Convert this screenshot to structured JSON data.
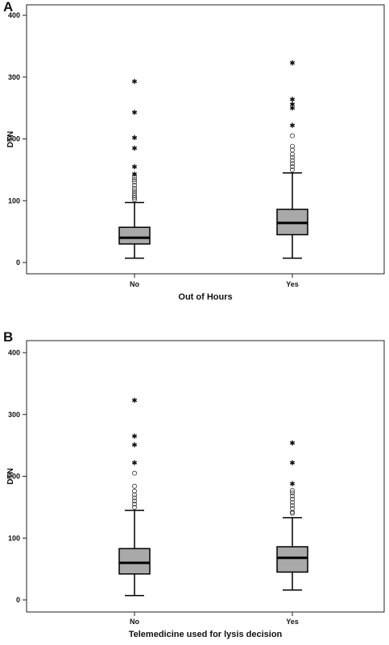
{
  "chart_data": [
    {
      "type": "boxplot",
      "panel_label": "A",
      "xlabel": "Out of Hours",
      "ylabel": "DTN",
      "ylim": [
        0,
        400
      ],
      "yticks": [
        0,
        100,
        200,
        300,
        400
      ],
      "categories": [
        "No",
        "Yes"
      ],
      "boxes": [
        {
          "category": "No",
          "whisker_low": 7,
          "q1": 30,
          "median": 40,
          "q3": 57,
          "whisker_high": 97,
          "outliers_circle": [
            102,
            105,
            108,
            112,
            116,
            120,
            125,
            130,
            134,
            138
          ],
          "outliers_star": [
            143,
            155,
            185,
            202,
            243,
            293
          ]
        },
        {
          "category": "Yes",
          "whisker_low": 7,
          "q1": 45,
          "median": 64,
          "q3": 86,
          "whisker_high": 145,
          "outliers_circle": [
            150,
            155,
            160,
            165,
            170,
            175,
            182,
            188,
            205
          ],
          "outliers_star": [
            222,
            250,
            256,
            264,
            323
          ]
        }
      ]
    },
    {
      "type": "boxplot",
      "panel_label": "B",
      "xlabel": "Telemedicine used for lysis decision",
      "ylabel": "DTN",
      "ylim": [
        0,
        400
      ],
      "yticks": [
        0,
        100,
        200,
        300,
        400
      ],
      "categories": [
        "No",
        "Yes"
      ],
      "boxes": [
        {
          "category": "No",
          "whisker_low": 7,
          "q1": 42,
          "median": 60,
          "q3": 83,
          "whisker_high": 145,
          "outliers_circle": [
            150,
            155,
            160,
            165,
            170,
            176,
            184,
            205
          ],
          "outliers_star": [
            222,
            251,
            265,
            323
          ]
        },
        {
          "category": "Yes",
          "whisker_low": 16,
          "q1": 45,
          "median": 68,
          "q3": 86,
          "whisker_high": 133,
          "outliers_circle": [
            140,
            142,
            148,
            153,
            158,
            163,
            168,
            173,
            177
          ],
          "outliers_star": [
            188,
            222,
            254
          ]
        }
      ]
    }
  ]
}
